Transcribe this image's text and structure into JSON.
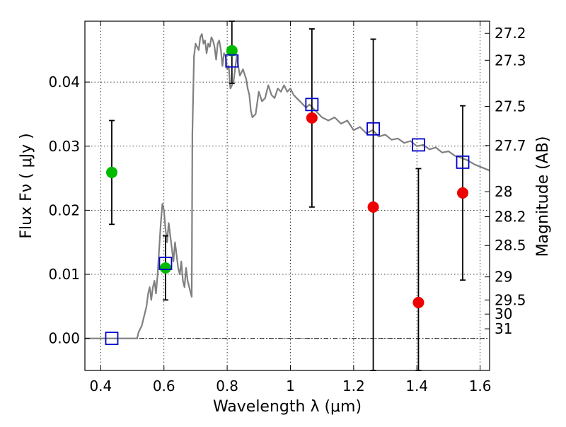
{
  "chart_data": {
    "type": "scatter",
    "xlabel": "Wavelength  λ (μm)",
    "ylabel": "Flux  Fν  ( μJy )",
    "ylabel_right": "Magnitude (AB)",
    "xlim": [
      0.35,
      1.63
    ],
    "ylim": [
      -0.005,
      0.0495
    ],
    "xticks": [
      0.4,
      0.6,
      0.8,
      1.0,
      1.2,
      1.4,
      1.6
    ],
    "xtick_labels": [
      "0.4",
      "0.6",
      "0.8",
      "1",
      "1.2",
      "1.4",
      "1.6"
    ],
    "yticks": [
      0.0,
      0.01,
      0.02,
      0.03,
      0.04
    ],
    "ytick_labels": [
      "0.00",
      "0.01",
      "0.02",
      "0.03",
      "0.04"
    ],
    "mag_ticks": [
      {
        "label": "27.2",
        "flux": 0.0476
      },
      {
        "label": "27.3",
        "flux": 0.0434
      },
      {
        "label": "27.5",
        "flux": 0.0362
      },
      {
        "label": "27.7",
        "flux": 0.0301
      },
      {
        "label": "28",
        "flux": 0.0229
      },
      {
        "label": "28.2",
        "flux": 0.019
      },
      {
        "label": "28.5",
        "flux": 0.0145
      },
      {
        "label": "29",
        "flux": 0.0096
      },
      {
        "label": "29.5",
        "flux": 0.006
      },
      {
        "label": "30",
        "flux": 0.0038
      },
      {
        "label": "31",
        "flux": 0.0015
      }
    ],
    "grid": true,
    "colors": {
      "model": "#808080",
      "model_points": "#0000cc",
      "detections": "#00bb00",
      "nondetections": "#ee0000",
      "errorbars": "#000000",
      "zero_line": "#000000"
    },
    "model_spectrum": {
      "x": [
        0.35,
        0.4,
        0.45,
        0.5,
        0.515,
        0.52,
        0.53,
        0.545,
        0.55,
        0.555,
        0.56,
        0.565,
        0.57,
        0.575,
        0.58,
        0.585,
        0.59,
        0.595,
        0.6,
        0.605,
        0.61,
        0.615,
        0.62,
        0.625,
        0.63,
        0.635,
        0.64,
        0.645,
        0.65,
        0.655,
        0.66,
        0.665,
        0.67,
        0.675,
        0.68,
        0.685,
        0.688,
        0.69,
        0.695,
        0.7,
        0.705,
        0.71,
        0.715,
        0.72,
        0.725,
        0.73,
        0.735,
        0.74,
        0.745,
        0.75,
        0.755,
        0.76,
        0.765,
        0.77,
        0.775,
        0.78,
        0.785,
        0.79,
        0.795,
        0.8,
        0.805,
        0.81,
        0.82,
        0.83,
        0.84,
        0.85,
        0.86,
        0.865,
        0.87,
        0.875,
        0.88,
        0.89,
        0.9,
        0.91,
        0.92,
        0.93,
        0.94,
        0.95,
        0.96,
        0.97,
        0.98,
        0.99,
        1.0,
        1.01,
        1.02,
        1.03,
        1.04,
        1.05,
        1.06,
        1.08,
        1.1,
        1.12,
        1.14,
        1.16,
        1.18,
        1.2,
        1.22,
        1.24,
        1.26,
        1.28,
        1.3,
        1.32,
        1.34,
        1.36,
        1.38,
        1.4,
        1.42,
        1.44,
        1.46,
        1.48,
        1.5,
        1.52,
        1.54,
        1.56,
        1.58,
        1.6,
        1.63
      ],
      "y": [
        0.0,
        0.0,
        0.0,
        0.0,
        0.0,
        0.001,
        0.002,
        0.005,
        0.007,
        0.008,
        0.006,
        0.008,
        0.009,
        0.007,
        0.01,
        0.014,
        0.018,
        0.021,
        0.02,
        0.017,
        0.015,
        0.018,
        0.016,
        0.014,
        0.012,
        0.015,
        0.013,
        0.011,
        0.01,
        0.012,
        0.009,
        0.008,
        0.011,
        0.009,
        0.008,
        0.007,
        0.0065,
        0.032,
        0.044,
        0.046,
        0.0455,
        0.045,
        0.047,
        0.0475,
        0.046,
        0.0465,
        0.0445,
        0.046,
        0.0455,
        0.047,
        0.0465,
        0.0455,
        0.0435,
        0.046,
        0.0465,
        0.045,
        0.0425,
        0.0445,
        0.044,
        0.042,
        0.0425,
        0.039,
        0.04,
        0.044,
        0.041,
        0.042,
        0.0405,
        0.039,
        0.038,
        0.0355,
        0.0345,
        0.035,
        0.0385,
        0.037,
        0.0375,
        0.0395,
        0.038,
        0.0375,
        0.039,
        0.0385,
        0.0395,
        0.0385,
        0.039,
        0.038,
        0.0375,
        0.037,
        0.0365,
        0.036,
        0.0365,
        0.0355,
        0.0345,
        0.034,
        0.0345,
        0.0335,
        0.034,
        0.0325,
        0.033,
        0.032,
        0.0325,
        0.0315,
        0.0318,
        0.031,
        0.0312,
        0.0305,
        0.0308,
        0.03,
        0.0302,
        0.0295,
        0.0298,
        0.029,
        0.0292,
        0.0285,
        0.0282,
        0.0278,
        0.0272,
        0.0268,
        0.0262
      ]
    },
    "model_points": [
      {
        "x": 0.435,
        "y": 0.0
      },
      {
        "x": 0.605,
        "y": 0.0117
      },
      {
        "x": 0.815,
        "y": 0.0433
      },
      {
        "x": 1.068,
        "y": 0.0365
      },
      {
        "x": 1.262,
        "y": 0.0327
      },
      {
        "x": 1.405,
        "y": 0.0302
      },
      {
        "x": 1.545,
        "y": 0.0275
      }
    ],
    "detections": [
      {
        "x": 0.435,
        "y": 0.0259,
        "ylo": 0.0178,
        "yhi": 0.034
      },
      {
        "x": 0.605,
        "y": 0.011,
        "ylo": 0.006,
        "yhi": 0.016
      },
      {
        "x": 0.815,
        "y": 0.0449,
        "ylo": 0.0398,
        "yhi": 0.0495
      }
    ],
    "nondetections": [
      {
        "x": 1.068,
        "y": 0.0344,
        "ylo": 0.0205,
        "yhi": 0.0483
      },
      {
        "x": 1.262,
        "y": 0.0205,
        "ylo": -0.005,
        "yhi": 0.0467
      },
      {
        "x": 1.405,
        "y": 0.0056,
        "ylo": -0.005,
        "yhi": 0.0265
      },
      {
        "x": 1.545,
        "y": 0.0227,
        "ylo": 0.0091,
        "yhi": 0.0363
      }
    ]
  }
}
